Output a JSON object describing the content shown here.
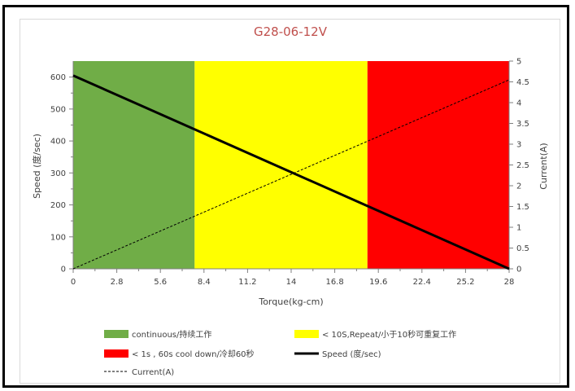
{
  "chart_data": {
    "type": "line",
    "title": "G28-06-12V",
    "xlabel": "Torque(kg-cm)",
    "ylabel": "Speed (度/sec)",
    "y2label": "Current(A)",
    "xlim": [
      0,
      28
    ],
    "ylim": [
      0,
      650
    ],
    "y2lim": [
      0,
      5
    ],
    "x_ticks": [
      "0",
      "2.8",
      "5.6",
      "8.4",
      "11.2",
      "14",
      "16.8",
      "19.6",
      "22.4",
      "25.2",
      "28"
    ],
    "y_ticks": [
      "0",
      "100",
      "200",
      "300",
      "400",
      "500",
      "600"
    ],
    "y2_ticks": [
      "0",
      "0.5",
      "1",
      "1.5",
      "2",
      "2.5",
      "3",
      "3.5",
      "4",
      "4.5",
      "5"
    ],
    "grid": false,
    "legend_position": "bottom",
    "bands": [
      {
        "name": "continuous/持续工作",
        "color": "#70ad47",
        "x_start": 0,
        "x_end": 7.8
      },
      {
        "name": "< 10S,Repeat/小于10秒可重复工作",
        "color": "#ffff00",
        "x_start": 7.8,
        "x_end": 18.9
      },
      {
        "name": "< 1s , 60s cool down/冷却60秒",
        "color": "#ff0000",
        "x_start": 18.9,
        "x_end": 28
      }
    ],
    "series": [
      {
        "name": "Speed (度/sec)",
        "axis": "left",
        "color": "#000000",
        "style": "solid",
        "x": [
          0,
          28
        ],
        "values": [
          605,
          0
        ]
      },
      {
        "name": "Current(A)",
        "axis": "right",
        "color": "#000000",
        "style": "dashed",
        "x": [
          0,
          28
        ],
        "values": [
          0,
          4.55
        ]
      }
    ]
  }
}
